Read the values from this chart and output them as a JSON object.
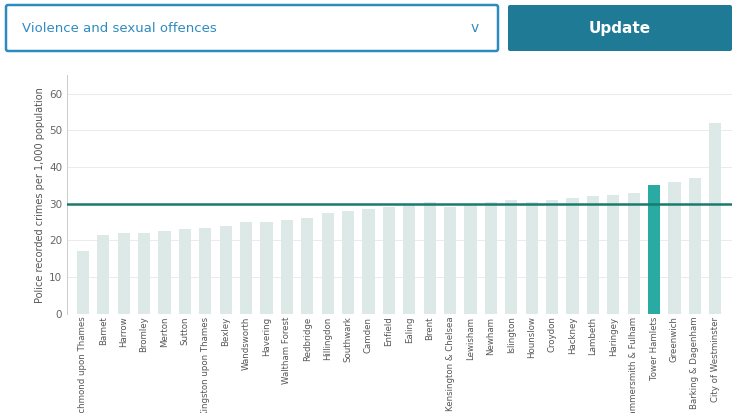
{
  "boroughs": [
    "Richmond upon Thames",
    "Barnet",
    "Harrow",
    "Bromley",
    "Merton",
    "Sutton",
    "Kingston upon Thames",
    "Bexley",
    "Wandsworth",
    "Havering",
    "Waltham Forest",
    "Redbridge",
    "Hillingdon",
    "Southwark",
    "Camden",
    "Enfield",
    "Ealing",
    "Brent",
    "Kensington & Chelsea",
    "Lewisham",
    "Newham",
    "Islington",
    "Hounslow",
    "Croydon",
    "Hackney",
    "Lambeth",
    "Haringey",
    "Hammersmith & Fulham",
    "Tower Hamlets",
    "Greenwich",
    "Barking & Dagenham",
    "City of Westminster"
  ],
  "values": [
    17,
    21.5,
    22,
    22,
    22.5,
    23,
    23.5,
    24,
    25,
    25,
    25.5,
    26,
    27.5,
    28,
    28.5,
    29,
    30,
    30.5,
    29,
    30,
    30.5,
    31,
    30.5,
    31,
    31.5,
    32,
    32.5,
    33,
    35,
    36,
    37,
    52
  ],
  "highlighted_borough": "Tower Hamlets",
  "highlight_color": "#29aba4",
  "default_color": "#dce9e7",
  "reference_line_value": 30,
  "reference_line_color": "#1a7a6e",
  "ylabel": "Police recorded crimes per 1,000 population",
  "ylim": [
    0,
    65
  ],
  "yticks": [
    0,
    10,
    20,
    30,
    40,
    50,
    60
  ],
  "background_color": "#ffffff",
  "plot_bg_color": "#ffffff",
  "dropdown_text": "Violence and sexual offences",
  "button_text": "Update",
  "dropdown_border_color": "#2e8bc0",
  "button_bg_color": "#1f7a96",
  "dropdown_text_color": "#2e8bc0",
  "button_text_color": "#ffffff",
  "chevron": "v"
}
